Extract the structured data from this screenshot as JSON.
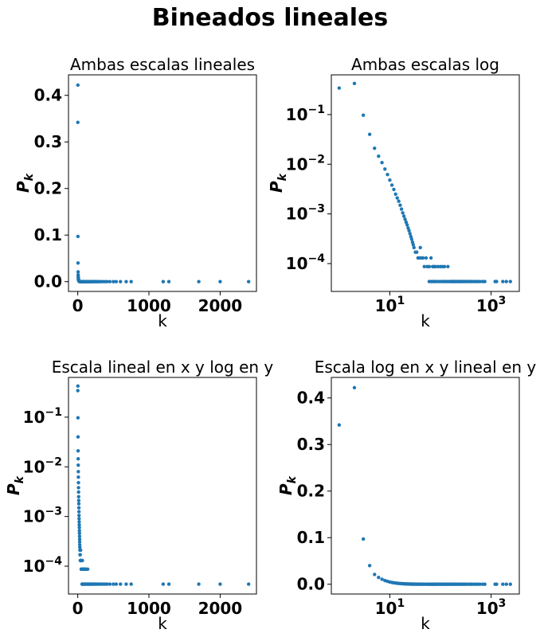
{
  "figure": {
    "title": "Bineados lineales"
  },
  "chart_data": [
    {
      "type": "scatter",
      "title": "Ambas escalas lineales",
      "xlabel": "k",
      "ylabel": "P",
      "ylabel_sub": "k",
      "xscale": "linear",
      "yscale": "linear",
      "xlim": [
        -130,
        2510
      ],
      "ylim": [
        -0.021,
        0.444
      ],
      "xticks": [
        {
          "v": 0,
          "label": "0"
        },
        {
          "v": 1000,
          "label": "1000"
        },
        {
          "v": 2000,
          "label": "2000"
        }
      ],
      "yticks": [
        {
          "v": 0,
          "label": "0.0"
        },
        {
          "v": 0.1,
          "label": "0.1"
        },
        {
          "v": 0.2,
          "label": "0.2"
        },
        {
          "v": 0.3,
          "label": "0.3"
        },
        {
          "v": 0.4,
          "label": "0.4"
        }
      ],
      "color": "#1f77b4"
    },
    {
      "type": "scatter",
      "title": "Ambas escalas log",
      "xlabel": "k",
      "ylabel": "P",
      "ylabel_sub": "k",
      "xscale": "log",
      "yscale": "log",
      "xlim": [
        0.7,
        3600
      ],
      "ylim": [
        2.75e-05,
        0.63
      ],
      "xticks": [
        {
          "v": 10,
          "base": "10",
          "exp": "1"
        },
        {
          "v": 1000,
          "base": "10",
          "exp": "3"
        }
      ],
      "yticks": [
        {
          "v": 0.0001,
          "base": "10",
          "exp": "−4"
        },
        {
          "v": 0.001,
          "base": "10",
          "exp": "−3"
        },
        {
          "v": 0.01,
          "base": "10",
          "exp": "−2"
        },
        {
          "v": 0.1,
          "base": "10",
          "exp": "−1"
        }
      ],
      "color": "#1f77b4"
    },
    {
      "type": "scatter",
      "title": "Escala lineal en x y log en y",
      "xlabel": "k",
      "ylabel": "P",
      "ylabel_sub": "k",
      "xscale": "linear",
      "yscale": "log",
      "xlim": [
        -130,
        2510
      ],
      "ylim": [
        2.75e-05,
        0.63
      ],
      "xticks": [
        {
          "v": 0,
          "label": "0"
        },
        {
          "v": 1000,
          "label": "1000"
        },
        {
          "v": 2000,
          "label": "2000"
        }
      ],
      "yticks": [
        {
          "v": 0.0001,
          "base": "10",
          "exp": "−4"
        },
        {
          "v": 0.001,
          "base": "10",
          "exp": "−3"
        },
        {
          "v": 0.01,
          "base": "10",
          "exp": "−2"
        },
        {
          "v": 0.1,
          "base": "10",
          "exp": "−1"
        }
      ],
      "color": "#1f77b4"
    },
    {
      "type": "scatter",
      "title": "Escala log en x y lineal en y",
      "xlabel": "k",
      "ylabel": "P",
      "ylabel_sub": "k",
      "xscale": "log",
      "yscale": "linear",
      "xlim": [
        0.7,
        3600
      ],
      "ylim": [
        -0.021,
        0.444
      ],
      "xticks": [
        {
          "v": 10,
          "base": "10",
          "exp": "1"
        },
        {
          "v": 1000,
          "base": "10",
          "exp": "3"
        }
      ],
      "yticks": [
        {
          "v": 0,
          "label": "0.0"
        },
        {
          "v": 0.1,
          "label": "0.1"
        },
        {
          "v": 0.2,
          "label": "0.2"
        },
        {
          "v": 0.3,
          "label": "0.3"
        },
        {
          "v": 0.4,
          "label": "0.4"
        }
      ],
      "color": "#1f77b4"
    }
  ],
  "series": {
    "name": "",
    "points": [
      [
        1,
        0.342
      ],
      [
        2,
        0.422
      ],
      [
        3,
        0.097
      ],
      [
        4,
        0.04
      ],
      [
        5,
        0.021
      ],
      [
        6,
        0.0145
      ],
      [
        7,
        0.0108
      ],
      [
        8,
        0.008
      ],
      [
        9,
        0.0062
      ],
      [
        10,
        0.0048
      ],
      [
        11,
        0.0038
      ],
      [
        12,
        0.0031
      ],
      [
        13,
        0.0025
      ],
      [
        14,
        0.0021
      ],
      [
        15,
        0.0018
      ],
      [
        16,
        0.0015
      ],
      [
        17,
        0.00125
      ],
      [
        18,
        0.00105
      ],
      [
        19,
        0.0009
      ],
      [
        20,
        0.00078
      ],
      [
        21,
        0.00068
      ],
      [
        22,
        0.0006
      ],
      [
        23,
        0.00052
      ],
      [
        24,
        0.00046
      ],
      [
        25,
        0.0004
      ],
      [
        26,
        0.00035
      ],
      [
        27,
        0.00031
      ],
      [
        28,
        0.00027
      ],
      [
        29,
        0.00024
      ],
      [
        30,
        0.00021
      ],
      [
        32,
        0.00017
      ],
      [
        34,
        0.00017
      ],
      [
        36,
        0.00013
      ],
      [
        38,
        0.00013
      ],
      [
        40,
        0.00021
      ],
      [
        42,
        0.00013
      ],
      [
        45,
        0.00013
      ],
      [
        48,
        8.7e-05
      ],
      [
        52,
        0.00013
      ],
      [
        55,
        8.7e-05
      ],
      [
        60,
        8.7e-05
      ],
      [
        65,
        0.00013
      ],
      [
        70,
        8.7e-05
      ],
      [
        75,
        8.7e-05
      ],
      [
        80,
        8.7e-05
      ],
      [
        90,
        8.7e-05
      ],
      [
        100,
        8.7e-05
      ],
      [
        110,
        8.7e-05
      ],
      [
        120,
        8.7e-05
      ],
      [
        140,
        8.7e-05
      ],
      [
        60,
        4.35e-05
      ],
      [
        66,
        4.35e-05
      ],
      [
        72,
        4.35e-05
      ],
      [
        78,
        4.35e-05
      ],
      [
        85,
        4.35e-05
      ],
      [
        95,
        4.35e-05
      ],
      [
        105,
        4.35e-05
      ],
      [
        115,
        4.35e-05
      ],
      [
        125,
        4.35e-05
      ],
      [
        135,
        4.35e-05
      ],
      [
        150,
        4.35e-05
      ],
      [
        160,
        4.35e-05
      ],
      [
        170,
        4.35e-05
      ],
      [
        180,
        4.35e-05
      ],
      [
        190,
        4.35e-05
      ],
      [
        200,
        4.35e-05
      ],
      [
        215,
        4.35e-05
      ],
      [
        230,
        4.35e-05
      ],
      [
        245,
        4.35e-05
      ],
      [
        260,
        4.35e-05
      ],
      [
        280,
        4.35e-05
      ],
      [
        300,
        4.35e-05
      ],
      [
        320,
        4.35e-05
      ],
      [
        350,
        4.35e-05
      ],
      [
        380,
        4.35e-05
      ],
      [
        410,
        4.35e-05
      ],
      [
        450,
        4.35e-05
      ],
      [
        500,
        4.35e-05
      ],
      [
        540,
        4.35e-05
      ],
      [
        600,
        4.35e-05
      ],
      [
        680,
        4.35e-05
      ],
      [
        750,
        4.35e-05
      ],
      [
        1200,
        4.35e-05
      ],
      [
        1280,
        4.35e-05
      ],
      [
        1700,
        4.35e-05
      ],
      [
        2000,
        4.35e-05
      ],
      [
        2400,
        4.35e-05
      ]
    ]
  }
}
